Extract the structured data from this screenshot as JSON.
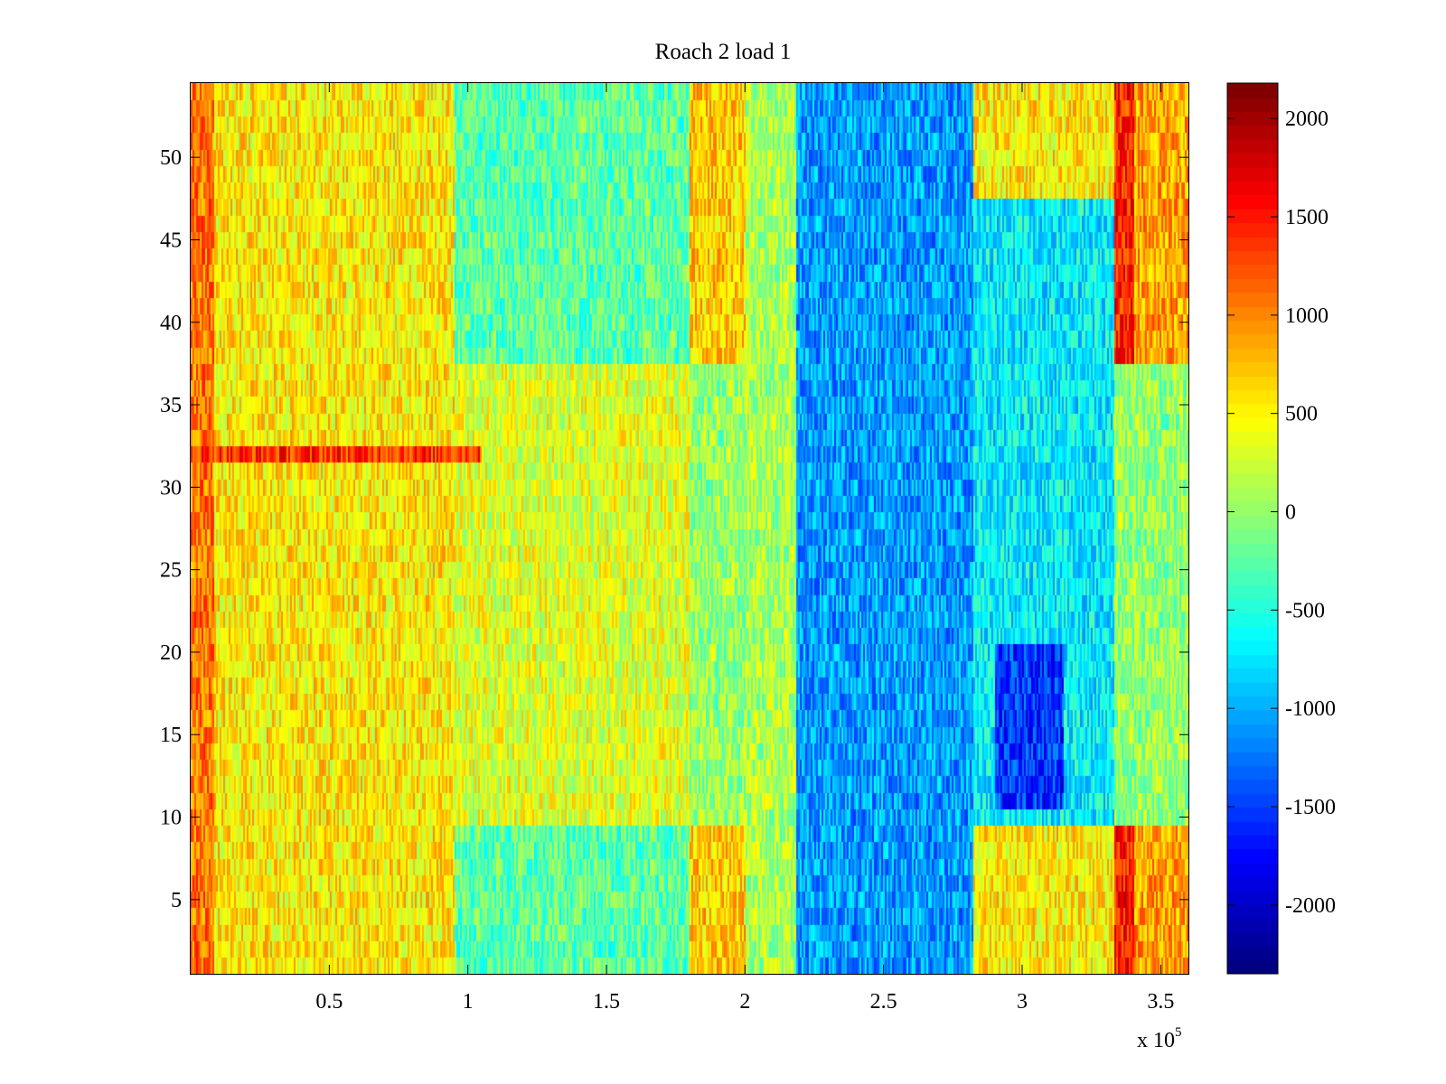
{
  "chart_data": {
    "type": "heatmap",
    "title": "Roach 2 load 1",
    "xlabel": "",
    "ylabel": "",
    "x_exponent_label": {
      "base": "x 10",
      "exponent": "5"
    },
    "xlim": [
      0,
      360000
    ],
    "ylim": [
      0.5,
      54.5
    ],
    "rows": 54,
    "x_ticks": [
      {
        "value": 50000,
        "label": "0.5"
      },
      {
        "value": 100000,
        "label": "1"
      },
      {
        "value": 150000,
        "label": "1.5"
      },
      {
        "value": 200000,
        "label": "2"
      },
      {
        "value": 250000,
        "label": "2.5"
      },
      {
        "value": 300000,
        "label": "3"
      },
      {
        "value": 350000,
        "label": "3.5"
      }
    ],
    "y_ticks": [
      {
        "value": 5,
        "label": "5"
      },
      {
        "value": 10,
        "label": "10"
      },
      {
        "value": 15,
        "label": "15"
      },
      {
        "value": 20,
        "label": "20"
      },
      {
        "value": 25,
        "label": "25"
      },
      {
        "value": 30,
        "label": "30"
      },
      {
        "value": 35,
        "label": "35"
      },
      {
        "value": 40,
        "label": "40"
      },
      {
        "value": 45,
        "label": "45"
      },
      {
        "value": 50,
        "label": "50"
      }
    ],
    "colorbar": {
      "colormap": "jet",
      "clim": [
        -2350,
        2180
      ],
      "ticks": [
        {
          "value": 2000,
          "label": "2000"
        },
        {
          "value": 1500,
          "label": "1500"
        },
        {
          "value": 1000,
          "label": "1000"
        },
        {
          "value": 500,
          "label": "500"
        },
        {
          "value": 0,
          "label": "0"
        },
        {
          "value": -500,
          "label": "-500"
        },
        {
          "value": -1000,
          "label": "-1000"
        },
        {
          "value": -1500,
          "label": "-1500"
        },
        {
          "value": -2000,
          "label": "-2000"
        }
      ]
    },
    "approximate_regions": [
      {
        "x_range": [
          0,
          8000
        ],
        "rows": "all",
        "level": 1100,
        "note": "warm band left edge"
      },
      {
        "x_range": [
          8000,
          95000
        ],
        "rows": "all",
        "level": 550
      },
      {
        "x_range": [
          95000,
          180000
        ],
        "rows": "1-9,38-54",
        "level": -250
      },
      {
        "x_range": [
          95000,
          180000
        ],
        "rows": "10-37",
        "level": 350
      },
      {
        "x_range": [
          180000,
          200000
        ],
        "rows": "1-9,38-54",
        "level": 700
      },
      {
        "x_range": [
          200000,
          218000
        ],
        "rows": "all",
        "level": 100
      },
      {
        "x_range": [
          218000,
          282000
        ],
        "rows": "all",
        "level": -1100
      },
      {
        "x_range": [
          282000,
          333000
        ],
        "rows": "10-54",
        "level": -700
      },
      {
        "x_range": [
          282000,
          333000
        ],
        "rows": "1-9,48-54",
        "level": 550
      },
      {
        "x_range": [
          290000,
          315000
        ],
        "rows": "11-20",
        "level": -1550
      },
      {
        "x_range": [
          333000,
          340000
        ],
        "rows": "1-9,38-54",
        "level": 1500
      },
      {
        "x_range": [
          340000,
          360000
        ],
        "rows": "1-9,38-54",
        "level": 900
      },
      {
        "x_range": [
          0,
          105000
        ],
        "rows": "32",
        "level": 1400,
        "note": "hot horizontal stripe"
      }
    ]
  }
}
